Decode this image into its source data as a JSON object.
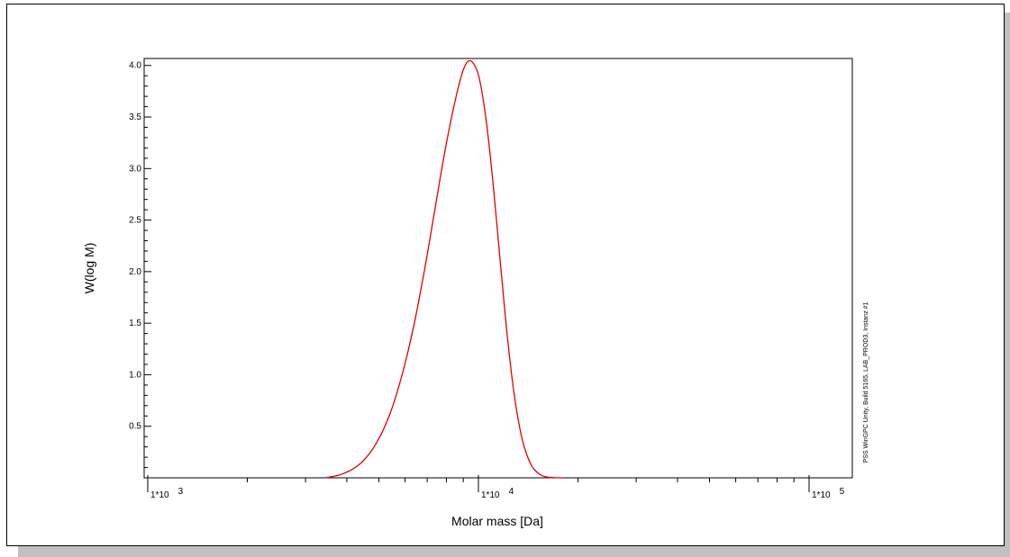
{
  "chart_data": {
    "type": "line",
    "x_scale": "log",
    "xlim": [
      1000,
      100000
    ],
    "ylim": [
      0,
      4.05
    ],
    "xlabel": "Molar mass [Da]",
    "ylabel": "W(log M)",
    "y_ticks": [
      "0.5",
      "1.0",
      "1.5",
      "2.0",
      "2.5",
      "3.0",
      "3.5",
      "4.0"
    ],
    "x_ticks": [
      {
        "base": "1*10",
        "exp": "3"
      },
      {
        "base": "1*10",
        "exp": "4"
      },
      {
        "base": "1*10",
        "exp": "5"
      }
    ],
    "series": [
      {
        "color": "#e00000",
        "x": [
          3460,
          3900,
          4400,
          4900,
          5400,
          5900,
          6400,
          6900,
          7400,
          7900,
          8400,
          8900,
          9300,
          9700,
          10100,
          10600,
          11100,
          11600,
          12100,
          12600,
          13100,
          13600,
          14100,
          14600,
          15100,
          15600,
          16300,
          17200,
          18000
        ],
        "y": [
          0.0,
          0.04,
          0.14,
          0.33,
          0.62,
          1.02,
          1.5,
          2.05,
          2.62,
          3.15,
          3.58,
          3.91,
          4.04,
          4.01,
          3.85,
          3.42,
          2.82,
          2.15,
          1.52,
          1.0,
          0.62,
          0.36,
          0.2,
          0.1,
          0.05,
          0.02,
          0.005,
          0.0,
          0.0
        ]
      }
    ],
    "side_note": "PSS WinGPC Unity, Build 5165, LAB_PROD3, Instanz #1"
  }
}
